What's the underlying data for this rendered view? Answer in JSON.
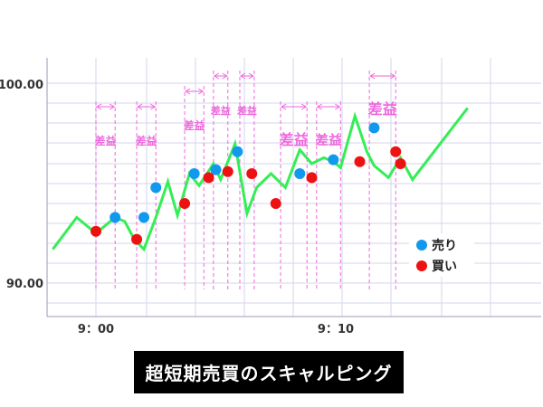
{
  "chart_data": {
    "type": "line",
    "title": "",
    "xlabel": "",
    "ylabel": "",
    "x_ticks": [
      {
        "label": "9：00",
        "minute": 0
      },
      {
        "label": "9：10",
        "minute": 10
      }
    ],
    "y_ticks": [
      {
        "label": "90.00",
        "value": 90.0
      },
      {
        "label": "100.00",
        "value": 100.0
      }
    ],
    "xlim": [
      -1.8,
      17.6
    ],
    "ylim": [
      88.3,
      101.2
    ],
    "grid": true,
    "price_line": {
      "color": "#33ee55",
      "x": [
        -1.8,
        -0.8,
        0.0,
        0.8,
        1.2,
        1.6,
        2.0,
        2.5,
        3.0,
        3.4,
        3.9,
        4.3,
        4.9,
        5.2,
        5.8,
        6.3,
        6.7,
        7.3,
        7.9,
        8.5,
        9.0,
        9.5,
        9.9,
        10.2,
        10.8,
        11.3,
        11.6,
        12.2,
        12.7,
        13.2,
        15.5
      ],
      "y": [
        91.7,
        93.3,
        92.5,
        93.3,
        93.1,
        92.2,
        91.7,
        93.3,
        95.1,
        93.4,
        95.5,
        94.9,
        96.0,
        95.2,
        97.0,
        93.5,
        94.8,
        95.5,
        94.8,
        96.7,
        96.0,
        96.3,
        96.1,
        95.8,
        98.4,
        96.6,
        95.9,
        95.3,
        96.3,
        95.2,
        98.8
      ]
    },
    "sell_points": {
      "color": "#1199ee",
      "x": [
        0.8,
        2.0,
        2.5,
        4.1,
        5.0,
        5.9,
        8.5,
        9.9,
        11.6
      ],
      "y": [
        93.3,
        93.3,
        94.8,
        95.5,
        95.7,
        96.6,
        95.5,
        96.2,
        97.8
      ]
    },
    "buy_points": {
      "color": "#ee1111",
      "x": [
        0.0,
        1.7,
        3.7,
        4.7,
        5.5,
        6.5,
        7.5,
        9.0,
        11.0,
        12.5,
        12.7
      ],
      "y": [
        92.6,
        92.2,
        94.0,
        95.3,
        95.6,
        95.5,
        94.0,
        95.3,
        96.1,
        96.6,
        96.0
      ]
    },
    "profit_spans": [
      {
        "from": 0.0,
        "to": 0.8,
        "label": "差益"
      },
      {
        "from": 1.7,
        "to": 2.5,
        "label": "差益"
      },
      {
        "from": 3.7,
        "to": 4.5,
        "label": "差益"
      },
      {
        "from": 4.9,
        "to": 5.5,
        "label": "差益"
      },
      {
        "from": 6.0,
        "to": 6.6,
        "label": "差益"
      },
      {
        "from": 7.7,
        "to": 8.8,
        "label": "差益"
      },
      {
        "from": 9.2,
        "to": 10.2,
        "label": "差益"
      },
      {
        "from": 11.4,
        "to": 12.5,
        "label": "差益"
      }
    ],
    "profit_color": "#ee66dd",
    "legend": [
      {
        "label": "売り",
        "color": "#1199ee"
      },
      {
        "label": "買い",
        "color": "#ee1111"
      }
    ],
    "legend_position": "right"
  },
  "caption": "超短期売買のスキャルピング"
}
